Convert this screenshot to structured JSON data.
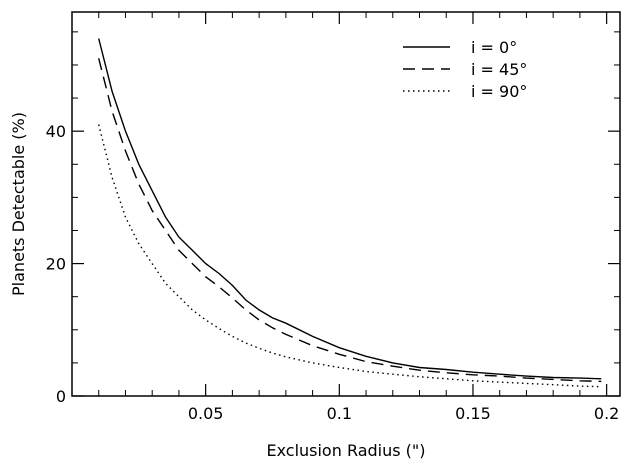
{
  "chart_data": {
    "type": "line",
    "title": "",
    "xlabel": "Exclusion Radius (\")",
    "ylabel": "Planets Detectable (%)",
    "xlim": [
      0.0,
      0.205
    ],
    "ylim": [
      0,
      58
    ],
    "grid": false,
    "legend_position": "top-right",
    "x_ticks": [
      {
        "value": 0.05,
        "label": "0.05"
      },
      {
        "value": 0.1,
        "label": "0.1"
      },
      {
        "value": 0.15,
        "label": "0.15"
      },
      {
        "value": 0.2,
        "label": "0.2"
      }
    ],
    "y_ticks": [
      {
        "value": 0,
        "label": "0"
      },
      {
        "value": 20,
        "label": "20"
      },
      {
        "value": 40,
        "label": "40"
      }
    ],
    "x": [
      0.01,
      0.015,
      0.02,
      0.025,
      0.03,
      0.035,
      0.04,
      0.045,
      0.05,
      0.055,
      0.06,
      0.065,
      0.07,
      0.075,
      0.08,
      0.09,
      0.1,
      0.11,
      0.12,
      0.13,
      0.14,
      0.15,
      0.16,
      0.17,
      0.18,
      0.19,
      0.198
    ],
    "series": [
      {
        "name": "i = 0°",
        "dash": "solid",
        "values": [
          54,
          46,
          40,
          35,
          31,
          27,
          24,
          22,
          20,
          18.5,
          16.7,
          14.5,
          13,
          11.8,
          11,
          9,
          7.3,
          6,
          5,
          4.3,
          4,
          3.6,
          3.3,
          3,
          2.8,
          2.7,
          2.6
        ]
      },
      {
        "name": "i = 45°",
        "dash": "dashed",
        "values": [
          51,
          43,
          37,
          32,
          28,
          25,
          22,
          20,
          18,
          16.5,
          14.8,
          13,
          11.5,
          10.3,
          9.3,
          7.6,
          6.3,
          5.2,
          4.5,
          3.9,
          3.5,
          3.2,
          3,
          2.7,
          2.5,
          2.3,
          2.2
        ]
      },
      {
        "name": "i = 90°",
        "dash": "dotted",
        "values": [
          41,
          33,
          27,
          23,
          20,
          17,
          15,
          13,
          11.5,
          10.2,
          9,
          8,
          7.2,
          6.5,
          5.9,
          5,
          4.3,
          3.7,
          3.3,
          2.9,
          2.6,
          2.3,
          2.1,
          1.9,
          1.7,
          1.5,
          1.4
        ]
      }
    ]
  }
}
